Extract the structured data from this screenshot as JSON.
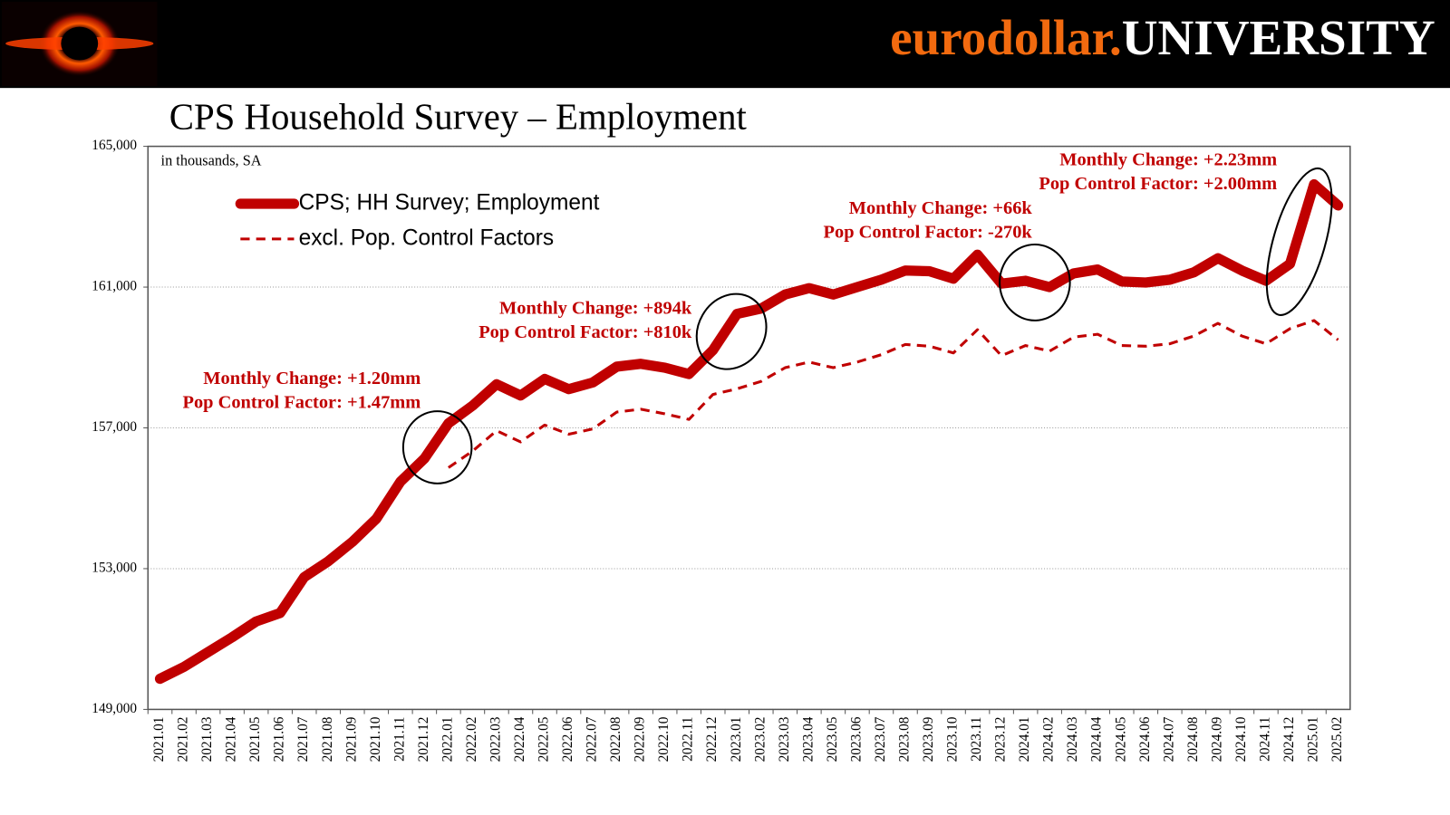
{
  "header": {
    "brand": "eurodollar.",
    "brand_suffix": "UNIVERSITY"
  },
  "chart_data": {
    "type": "line",
    "title": "CPS Household Survey – Employment",
    "subtitle": "in thousands, SA",
    "categories": [
      "2021.01",
      "2021.02",
      "2021.03",
      "2021.04",
      "2021.05",
      "2021.06",
      "2021.07",
      "2021.08",
      "2021.09",
      "2021.10",
      "2021.11",
      "2021.12",
      "2022.01",
      "2022.02",
      "2022.03",
      "2022.04",
      "2022.05",
      "2022.06",
      "2022.07",
      "2022.08",
      "2022.09",
      "2022.10",
      "2022.11",
      "2022.12",
      "2023.01",
      "2023.02",
      "2023.03",
      "2023.04",
      "2023.05",
      "2023.06",
      "2023.07",
      "2023.08",
      "2023.09",
      "2023.10",
      "2023.11",
      "2023.12",
      "2024.01",
      "2024.02",
      "2024.03",
      "2024.04",
      "2024.05",
      "2024.06",
      "2024.07",
      "2024.08",
      "2024.09",
      "2024.10",
      "2024.11",
      "2024.12",
      "2025.01",
      "2025.02"
    ],
    "series": [
      {
        "name": "CPS; HH Survey; Employment",
        "color": "#c00000",
        "dashed": false,
        "values": [
          149870,
          150210,
          150630,
          151050,
          151500,
          151740,
          152760,
          153210,
          153760,
          154420,
          155470,
          156130,
          157130,
          157630,
          158240,
          157920,
          158390,
          158100,
          158290,
          158740,
          158820,
          158710,
          158530,
          159210,
          160240,
          160390,
          160790,
          160970,
          160790,
          161000,
          161210,
          161470,
          161450,
          161240,
          161920,
          161100,
          161180,
          161000,
          161390,
          161500,
          161160,
          161130,
          161210,
          161420,
          161820,
          161470,
          161180,
          161660,
          163920,
          163320
        ]
      },
      {
        "name": "excl. Pop. Control Factors",
        "color": "#c00000",
        "dashed": true,
        "values": [
          null,
          null,
          null,
          null,
          null,
          null,
          null,
          null,
          null,
          null,
          null,
          null,
          155870,
          156340,
          156920,
          156600,
          157080,
          156820,
          156970,
          157450,
          157530,
          157400,
          157240,
          157950,
          158110,
          158320,
          158710,
          158870,
          158710,
          158870,
          159080,
          159370,
          159320,
          159130,
          159790,
          159050,
          159340,
          159180,
          159580,
          159660,
          159340,
          159320,
          159390,
          159610,
          159970,
          159610,
          159390,
          159820,
          160050,
          159500
        ]
      }
    ],
    "ylim": [
      149000,
      165000
    ],
    "yticks": [
      {
        "value": 149000,
        "label": "149,000"
      },
      {
        "value": 153000,
        "label": "153,000"
      },
      {
        "value": 157000,
        "label": "157,000"
      },
      {
        "value": 161000,
        "label": "161,000"
      },
      {
        "value": 165000,
        "label": "165,000"
      }
    ],
    "grid": true,
    "annotations": [
      {
        "lines": [
          "Monthly Change: +1.20mm",
          "Pop Control Factor: +1.47mm"
        ]
      },
      {
        "lines": [
          "Monthly Change: +894k",
          "Pop Control Factor: +810k"
        ]
      },
      {
        "lines": [
          "Monthly Change: +66k",
          "Pop Control Factor: -270k"
        ]
      },
      {
        "lines": [
          "Monthly Change: +2.23mm",
          "Pop Control Factor: +2.00mm"
        ]
      }
    ]
  }
}
